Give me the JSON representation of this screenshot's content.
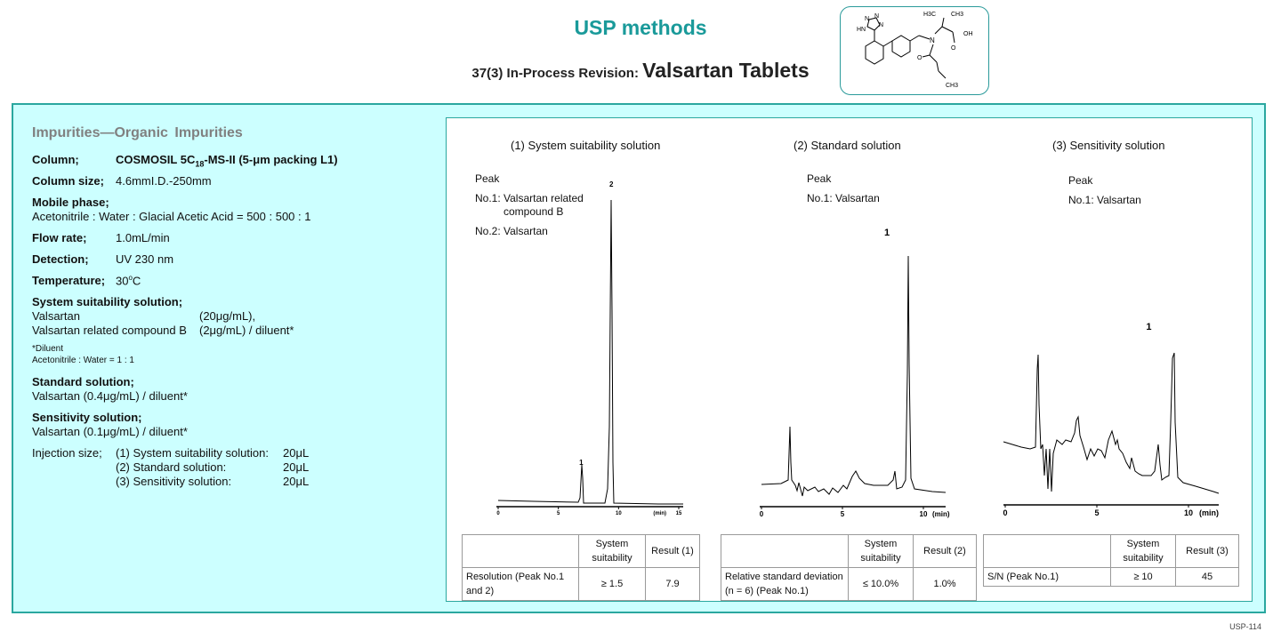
{
  "header": {
    "title": "USP methods",
    "subtitle_prefix": "37(3) In-Process Revision:",
    "subtitle_main": "Valsartan  Tablets"
  },
  "structure_labels": {
    "n1": "N",
    "n2": "N",
    "n3": "N",
    "hn": "HN",
    "h3c": "H3C",
    "ch3_top": "CH3",
    "n_center": "N",
    "oh": "OH",
    "o1": "O",
    "o2": "O",
    "ch3_bottom": "CH3"
  },
  "conditions": {
    "heading": "Impurities—Organic  Impurities",
    "column_label": "Column;",
    "column_value_pre": "COSMOSIL  5C",
    "column_value_sub": "18",
    "column_value_post": "-MS-II (5-μm  packing L1)",
    "column_size_label": "Column size;",
    "column_size_value": "4.6mmI.D.-250mm",
    "mobile_phase_label": "Mobile phase;",
    "mobile_phase_value": "Acetonitrile : Water : Glacial Acetic Acid = 500 : 500 : 1",
    "flow_rate_label": "Flow rate;",
    "flow_rate_value": "1.0mL/min",
    "detection_label": "Detection;",
    "detection_value": "UV 230 nm",
    "temperature_label": "Temperature;",
    "temperature_value_pre": "30",
    "temperature_value_sup": "o",
    "temperature_value_post": "C",
    "ss_solution_label": "System suitability solution;",
    "ss_line1_name": "Valsartan",
    "ss_line1_conc": "(20μg/mL),",
    "ss_line2_name": "Valsartan  related  compound  B",
    "ss_line2_conc": "(2μg/mL)  / diluent*",
    "diluent_note": "*Diluent",
    "diluent_value": "Acetonitrile : Water =  1 : 1",
    "std_label": "Standard solution;",
    "std_value": "Valsartan  (0.4μg/mL)  / diluent*",
    "sens_label": "Sensitivity solution;",
    "sens_value": "Valsartan  (0.1μg/mL)  / diluent*",
    "injection_label": "Injection size;",
    "injection": [
      {
        "name": "(1) System suitability solution:",
        "vol": "20μL"
      },
      {
        "name": "(2) Standard solution:",
        "vol": "20μL"
      },
      {
        "name": "(3) Sensitivity solution:",
        "vol": "20μL"
      }
    ]
  },
  "chart_data": [
    {
      "type": "line",
      "title": "(1) System suitability solution",
      "peak_heading": "Peak",
      "peak_list": [
        "No.1: Valsartan related",
        "compound B",
        "No.2: Valsartan"
      ],
      "x_ticks": [
        "0",
        "5",
        "10",
        "15"
      ],
      "x_unit": "(min)",
      "xlim": [
        0,
        15
      ],
      "baseline_color": "#000000",
      "peaks": [
        {
          "label": "1",
          "rt": 6.9,
          "rel_height": 0.13
        },
        {
          "label": "2",
          "rt": 9.4,
          "rel_height": 1.0
        }
      ]
    },
    {
      "type": "line",
      "title": "(2) Standard solution",
      "peak_heading": "Peak",
      "peak_list": [
        "No.1: Valsartan"
      ],
      "x_ticks": [
        "0",
        "5",
        "10"
      ],
      "x_unit": "(min)",
      "xlim": [
        0,
        12
      ],
      "peaks": [
        {
          "label": "1",
          "rt": 9.3,
          "rel_height": 1.0
        }
      ]
    },
    {
      "type": "line",
      "title": "(3) Sensitivity solution",
      "peak_heading": "Peak",
      "peak_list": [
        "No.1: Valsartan"
      ],
      "x_ticks": [
        "0",
        "5",
        "10"
      ],
      "x_unit": "(min)",
      "xlim": [
        0,
        12
      ],
      "peaks": [
        {
          "label": "1",
          "rt": 9.4,
          "rel_height": 1.0
        }
      ]
    }
  ],
  "tables": [
    {
      "header_ss": "System suitability",
      "header_result": "Result (1)",
      "row_label": "Resolution (Peak No.1 and 2)",
      "ss_value": "≥ 1.5",
      "result": "7.9"
    },
    {
      "header_ss": "System suitability",
      "header_result": "Result (2)",
      "row_label": "Relative standard deviation (n = 6) (Peak No.1)",
      "ss_value": "≤ 10.0%",
      "result": "1.0%"
    },
    {
      "header_ss": "System suitability",
      "header_result": "Result (3)",
      "row_label": "S/N (Peak No.1)",
      "ss_value": "≥ 10",
      "result": "45"
    }
  ],
  "page_number": "USP-114"
}
